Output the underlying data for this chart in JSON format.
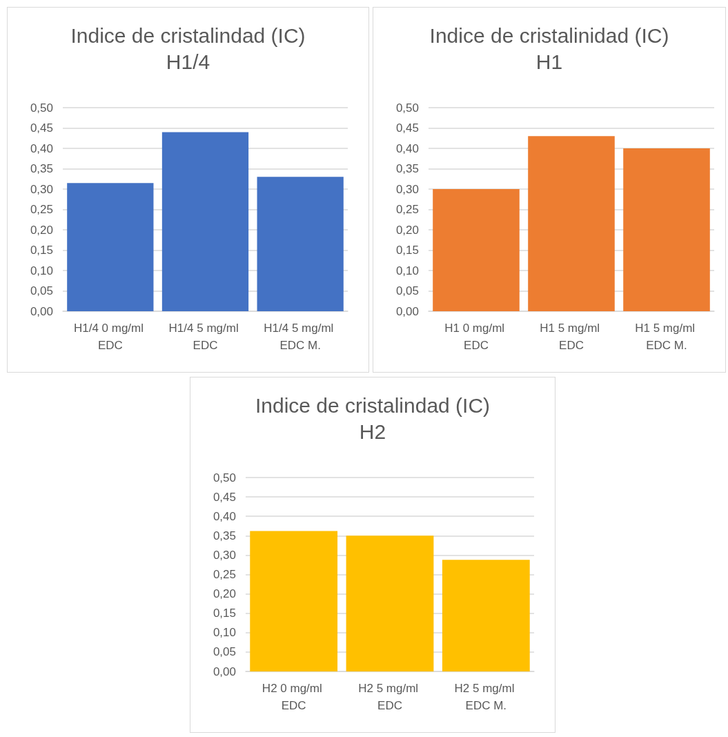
{
  "chart_data": [
    {
      "type": "bar",
      "title": "Indice de cristalindad (IC)",
      "subtitle": "H1/4",
      "categories": [
        "H1/4 0 mg/ml EDC",
        "H1/4 5 mg/ml EDC",
        "H1/4 5 mg/ml EDC M."
      ],
      "values": [
        0.315,
        0.44,
        0.33
      ],
      "color": "#4472c4",
      "ylim": [
        0,
        0.5
      ],
      "yticks": [
        {
          "value": 0,
          "label": "0,00"
        },
        {
          "value": 0.05,
          "label": "0,05"
        },
        {
          "value": 0.1,
          "label": "0,10"
        },
        {
          "value": 0.15,
          "label": "0,15"
        },
        {
          "value": 0.2,
          "label": "0,20"
        },
        {
          "value": 0.25,
          "label": "0,25"
        },
        {
          "value": 0.3,
          "label": "0,30"
        },
        {
          "value": 0.35,
          "label": "0,35"
        },
        {
          "value": 0.4,
          "label": "0,40"
        },
        {
          "value": 0.45,
          "label": "0,45"
        },
        {
          "value": 0.5,
          "label": "0,50"
        }
      ],
      "grid": "y"
    },
    {
      "type": "bar",
      "title": "Indice de cristalinidad (IC)",
      "subtitle": "H1",
      "categories": [
        "H1 0 mg/ml EDC",
        "H1 5 mg/ml EDC",
        "H1 5 mg/ml EDC M."
      ],
      "values": [
        0.3,
        0.43,
        0.4
      ],
      "color": "#ed7d31",
      "ylim": [
        0,
        0.5
      ],
      "yticks": [
        {
          "value": 0,
          "label": "0,00"
        },
        {
          "value": 0.05,
          "label": "0,05"
        },
        {
          "value": 0.1,
          "label": "0,10"
        },
        {
          "value": 0.15,
          "label": "0,15"
        },
        {
          "value": 0.2,
          "label": "0,20"
        },
        {
          "value": 0.25,
          "label": "0,25"
        },
        {
          "value": 0.3,
          "label": "0,30"
        },
        {
          "value": 0.35,
          "label": "0,35"
        },
        {
          "value": 0.4,
          "label": "0,40"
        },
        {
          "value": 0.45,
          "label": "0,45"
        },
        {
          "value": 0.5,
          "label": "0,50"
        }
      ],
      "grid": "y"
    },
    {
      "type": "bar",
      "title": "Indice de cristalindad (IC)",
      "subtitle": "H2",
      "categories": [
        "H2 0 mg/ml EDC",
        "H2 5 mg/ml EDC",
        "H2 5 mg/ml EDC M."
      ],
      "values": [
        0.362,
        0.35,
        0.288
      ],
      "color": "#ffc000",
      "ylim": [
        0,
        0.5
      ],
      "yticks": [
        {
          "value": 0,
          "label": "0,00"
        },
        {
          "value": 0.05,
          "label": "0,05"
        },
        {
          "value": 0.1,
          "label": "0,10"
        },
        {
          "value": 0.15,
          "label": "0,15"
        },
        {
          "value": 0.2,
          "label": "0,20"
        },
        {
          "value": 0.25,
          "label": "0,25"
        },
        {
          "value": 0.3,
          "label": "0,30"
        },
        {
          "value": 0.35,
          "label": "0,35"
        },
        {
          "value": 0.4,
          "label": "0,40"
        },
        {
          "value": 0.45,
          "label": "0,45"
        },
        {
          "value": 0.5,
          "label": "0,50"
        }
      ],
      "grid": "y"
    }
  ]
}
